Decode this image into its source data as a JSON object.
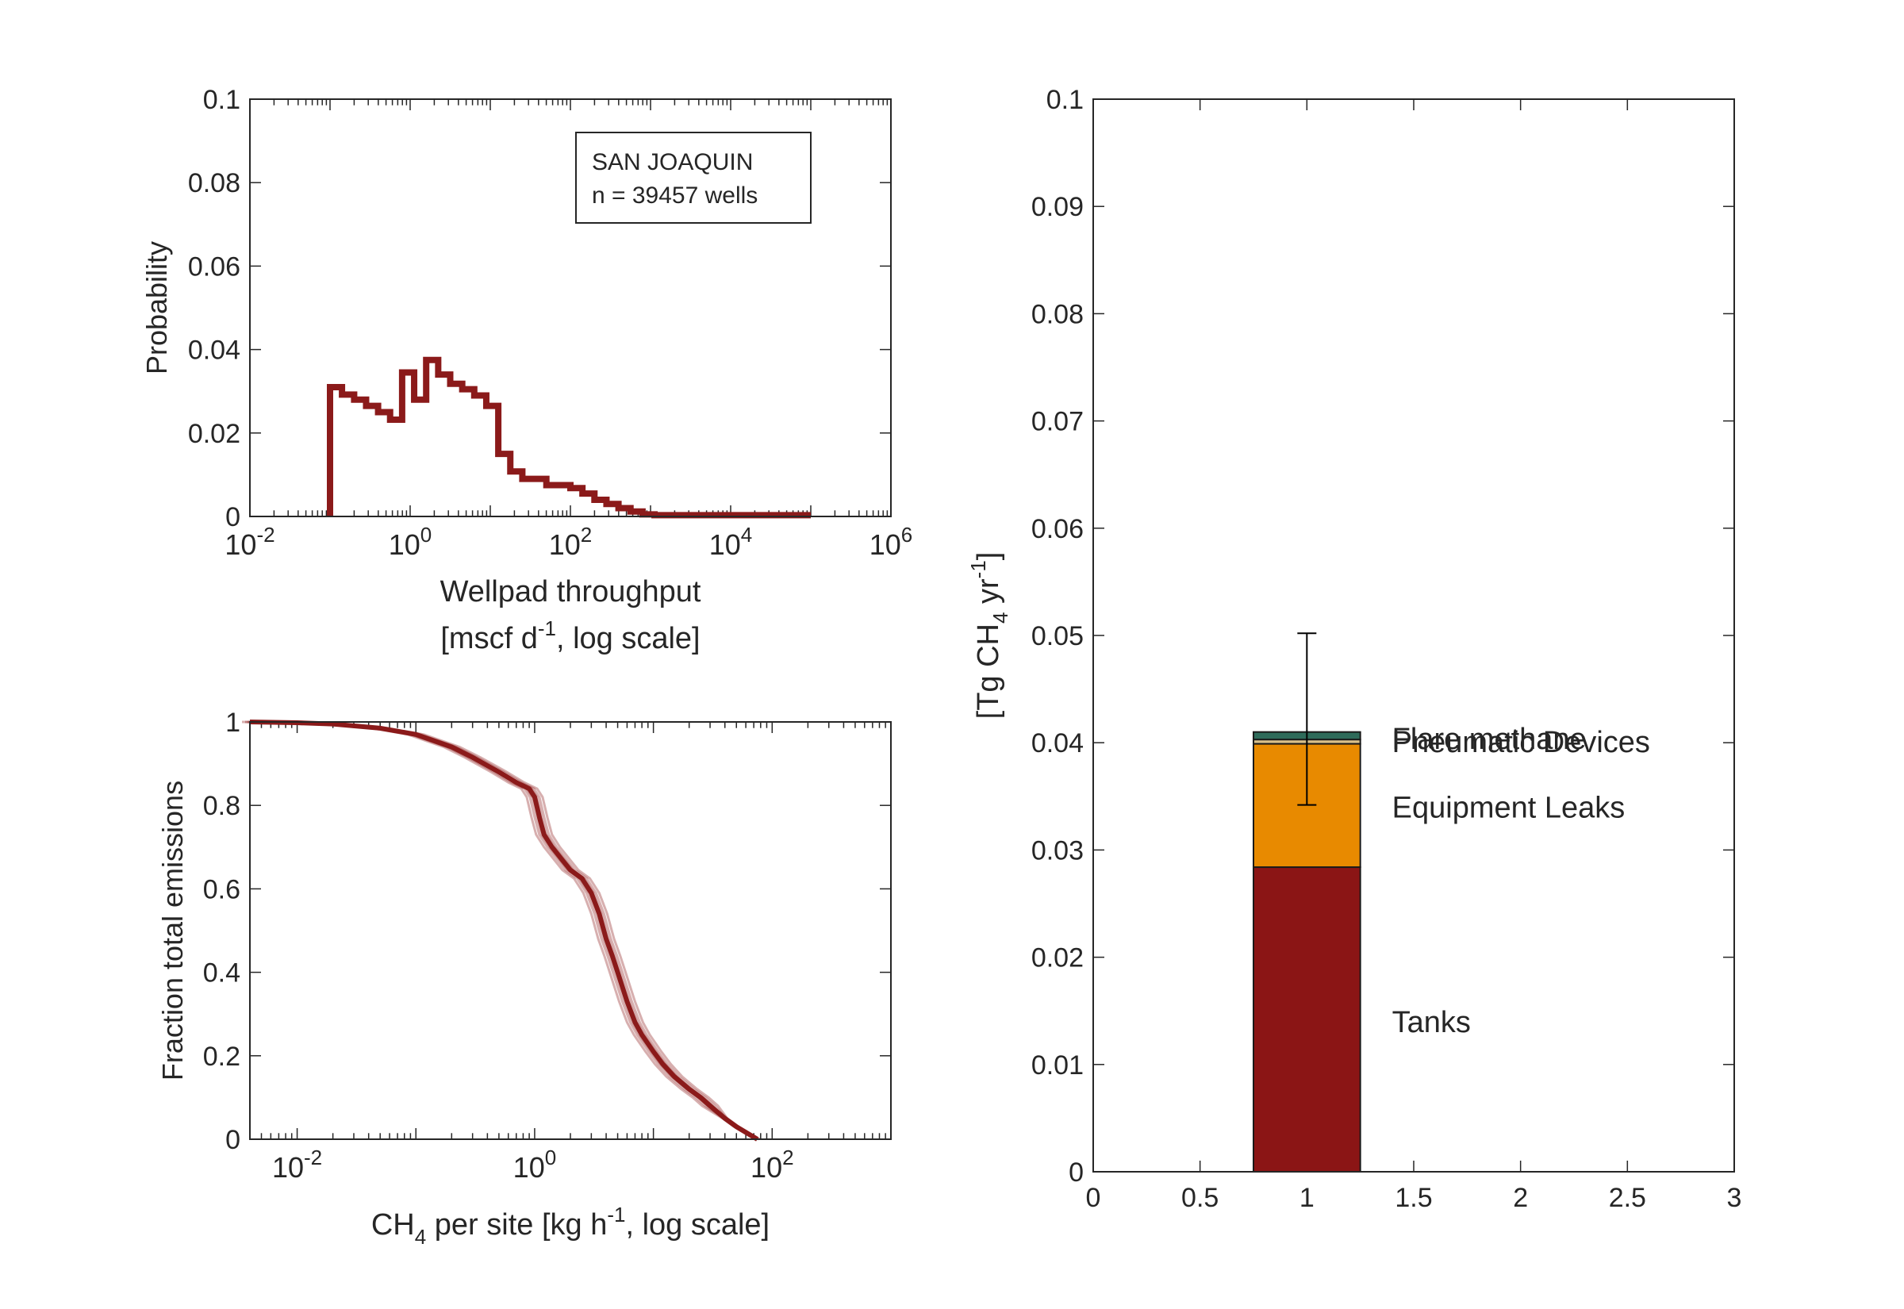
{
  "chart_data": [
    {
      "type": "line",
      "panel": "throughput-histogram",
      "ylabel": "Probability",
      "xlabel": "Wellpad throughput",
      "xlabel_line2": {
        "pre": "[mscf d",
        "sup": "-1",
        "post": ", log scale]"
      },
      "x_scale": "log",
      "xlim": [
        0.01,
        1000000
      ],
      "ylim": [
        0,
        0.1
      ],
      "yticks": [
        {
          "v": 0,
          "label": "0"
        },
        {
          "v": 0.02,
          "label": "0.02"
        },
        {
          "v": 0.04,
          "label": "0.04"
        },
        {
          "v": 0.06,
          "label": "0.06"
        },
        {
          "v": 0.08,
          "label": "0.08"
        },
        {
          "v": 0.1,
          "label": "0.1"
        }
      ],
      "xticks": [
        {
          "v": 0.01,
          "base": "10",
          "exp": "-2"
        },
        {
          "v": 1,
          "base": "10",
          "exp": "0"
        },
        {
          "v": 100,
          "base": "10",
          "exp": "2"
        },
        {
          "v": 10000,
          "base": "10",
          "exp": "4"
        },
        {
          "v": 1000000,
          "base": "10",
          "exp": "6"
        }
      ],
      "legend": {
        "line1": "SAN JOAQUIN",
        "line2": "n = 39457 wells"
      },
      "grid": false,
      "color": "#8b1a1a",
      "bins": [
        {
          "x0": 0.1,
          "x1": 0.141,
          "y": 0.031
        },
        {
          "x0": 0.141,
          "x1": 0.2,
          "y": 0.0292
        },
        {
          "x0": 0.2,
          "x1": 0.282,
          "y": 0.028
        },
        {
          "x0": 0.282,
          "x1": 0.398,
          "y": 0.0265
        },
        {
          "x0": 0.398,
          "x1": 0.562,
          "y": 0.025
        },
        {
          "x0": 0.562,
          "x1": 0.794,
          "y": 0.0232
        },
        {
          "x0": 0.794,
          "x1": 1.122,
          "y": 0.0345
        },
        {
          "x0": 1.122,
          "x1": 1.585,
          "y": 0.028
        },
        {
          "x0": 1.585,
          "x1": 2.239,
          "y": 0.0375
        },
        {
          "x0": 2.239,
          "x1": 3.162,
          "y": 0.034
        },
        {
          "x0": 3.162,
          "x1": 4.467,
          "y": 0.0318
        },
        {
          "x0": 4.467,
          "x1": 6.31,
          "y": 0.0305
        },
        {
          "x0": 6.31,
          "x1": 8.913,
          "y": 0.029
        },
        {
          "x0": 8.913,
          "x1": 12.59,
          "y": 0.0265
        },
        {
          "x0": 12.59,
          "x1": 17.78,
          "y": 0.015
        },
        {
          "x0": 17.78,
          "x1": 25.12,
          "y": 0.0108
        },
        {
          "x0": 25.12,
          "x1": 35.48,
          "y": 0.009
        },
        {
          "x0": 35.48,
          "x1": 50.12,
          "y": 0.009
        },
        {
          "x0": 50.12,
          "x1": 70.79,
          "y": 0.0075
        },
        {
          "x0": 70.79,
          "x1": 100,
          "y": 0.0075
        },
        {
          "x0": 100,
          "x1": 141.3,
          "y": 0.0068
        },
        {
          "x0": 141.3,
          "x1": 199.5,
          "y": 0.0055
        },
        {
          "x0": 199.5,
          "x1": 281.8,
          "y": 0.004
        },
        {
          "x0": 281.8,
          "x1": 398.1,
          "y": 0.003
        },
        {
          "x0": 398.1,
          "x1": 562.3,
          "y": 0.002
        },
        {
          "x0": 562.3,
          "x1": 794.3,
          "y": 0.0012
        },
        {
          "x0": 794.3,
          "x1": 1122,
          "y": 0.0005
        },
        {
          "x0": 1122,
          "x1": 100000,
          "y": 0.0003
        }
      ]
    },
    {
      "type": "line",
      "panel": "cumulative-emissions",
      "ylabel": "Fraction total emissions",
      "xlabel": {
        "pre": "CH",
        "sub": "4",
        "mid": " per site [kg h",
        "sup": "-1",
        "post": ", log scale]"
      },
      "x_scale": "log",
      "xlim": [
        0.004,
        1000
      ],
      "ylim": [
        0,
        1
      ],
      "yticks": [
        {
          "v": 0,
          "label": "0"
        },
        {
          "v": 0.2,
          "label": "0.2"
        },
        {
          "v": 0.4,
          "label": "0.4"
        },
        {
          "v": 0.6,
          "label": "0.6"
        },
        {
          "v": 0.8,
          "label": "0.8"
        },
        {
          "v": 1,
          "label": "1"
        }
      ],
      "xticks": [
        {
          "v": 0.01,
          "base": "10",
          "exp": "-2"
        },
        {
          "v": 1,
          "base": "10",
          "exp": "0"
        },
        {
          "v": 100,
          "base": "10",
          "exp": "2"
        }
      ],
      "grid": false,
      "color": "#8b1a1a",
      "series": [
        {
          "x": [
            0.004,
            0.01,
            0.02,
            0.05,
            0.1,
            0.2,
            0.3,
            0.5,
            0.7,
            0.9,
            1.0,
            1.1,
            1.2,
            1.4,
            1.7,
            2.0,
            2.5,
            3.0,
            3.5,
            4.0,
            4.5,
            5.0,
            6.0,
            7.0,
            8.0,
            10,
            12,
            15,
            20,
            25,
            30,
            40,
            50,
            75
          ],
          "y": [
            1.0,
            0.998,
            0.995,
            0.985,
            0.97,
            0.94,
            0.915,
            0.88,
            0.855,
            0.84,
            0.82,
            0.77,
            0.73,
            0.7,
            0.67,
            0.645,
            0.625,
            0.59,
            0.54,
            0.48,
            0.44,
            0.4,
            0.33,
            0.28,
            0.25,
            0.21,
            0.18,
            0.15,
            0.12,
            0.1,
            0.08,
            0.05,
            0.03,
            0.0
          ]
        }
      ]
    },
    {
      "type": "bar",
      "panel": "emissions-by-source",
      "stacked": true,
      "ylabel": {
        "pre": "[Tg CH",
        "sub": "4",
        "mid": " yr",
        "sup": "-1",
        "post": "]"
      },
      "xlim": [
        0,
        3
      ],
      "ylim": [
        0,
        0.1
      ],
      "xticks": [
        {
          "v": 0,
          "label": "0"
        },
        {
          "v": 0.5,
          "label": "0.5"
        },
        {
          "v": 1,
          "label": "1"
        },
        {
          "v": 1.5,
          "label": "1.5"
        },
        {
          "v": 2,
          "label": "2"
        },
        {
          "v": 2.5,
          "label": "2.5"
        },
        {
          "v": 3,
          "label": "3"
        }
      ],
      "yticks": [
        {
          "v": 0,
          "label": "0"
        },
        {
          "v": 0.01,
          "label": "0.01"
        },
        {
          "v": 0.02,
          "label": "0.02"
        },
        {
          "v": 0.03,
          "label": "0.03"
        },
        {
          "v": 0.04,
          "label": "0.04"
        },
        {
          "v": 0.05,
          "label": "0.05"
        },
        {
          "v": 0.06,
          "label": "0.06"
        },
        {
          "v": 0.07,
          "label": "0.07"
        },
        {
          "v": 0.08,
          "label": "0.08"
        },
        {
          "v": 0.09,
          "label": "0.09"
        },
        {
          "v": 0.1,
          "label": "0.1"
        }
      ],
      "bar_x": 1,
      "bar_width": 0.5,
      "grid": false,
      "segments": [
        {
          "name": "Tanks",
          "value": 0.0284,
          "color": "#8b1515",
          "label_y": 0.0139
        },
        {
          "name": "Equipment Leaks",
          "value": 0.0115,
          "color": "#e88a00",
          "label_y": 0.0339
        },
        {
          "name": "Pneumatic Devices",
          "value": 0.0004,
          "color": "#d9c08a",
          "label_y": 0.04
        },
        {
          "name": "Flare methane",
          "value": 0.0007,
          "color": "#2e6b5a",
          "label_y": 0.0403
        }
      ],
      "error_bar": {
        "center": 0.0411,
        "low": 0.0342,
        "high": 0.0502
      }
    }
  ]
}
